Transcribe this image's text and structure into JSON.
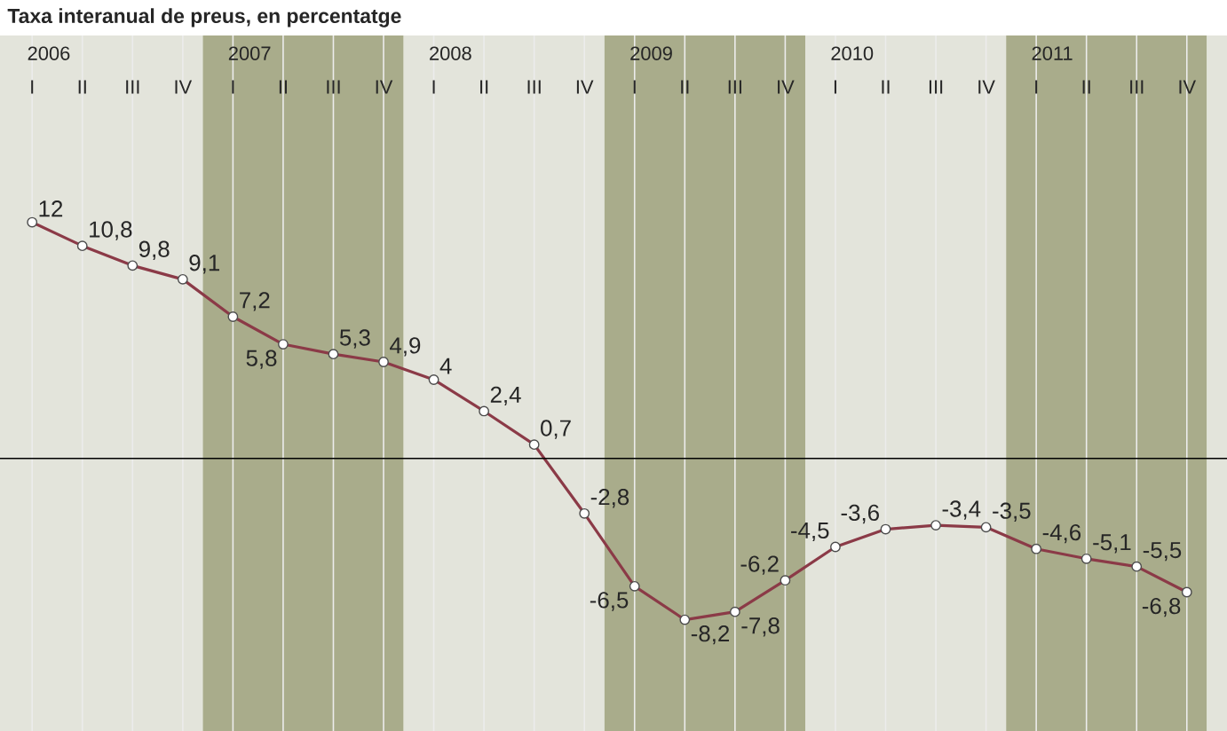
{
  "chart_data": {
    "type": "line",
    "title": "Taxa interanual de preus, en percentatge",
    "categories": [
      "I",
      "II",
      "III",
      "IV",
      "I",
      "II",
      "III",
      "IV",
      "I",
      "II",
      "III",
      "IV",
      "I",
      "II",
      "III",
      "IV",
      "I",
      "II",
      "III",
      "IV",
      "I",
      "II",
      "III",
      "IV"
    ],
    "values": [
      12,
      10.8,
      9.8,
      9.1,
      7.2,
      5.8,
      5.3,
      4.9,
      4,
      2.4,
      0.7,
      -2.8,
      -6.5,
      -8.2,
      -7.8,
      -6.2,
      -4.5,
      -3.6,
      -3.4,
      -3.5,
      -4.6,
      -5.1,
      -5.5,
      -6.8
    ],
    "value_labels": [
      "12",
      "10,8",
      "9,8",
      "9,1",
      "7,2",
      "5,8",
      "5,3",
      "4,9",
      "4",
      "2,4",
      "0,7",
      "-2,8",
      "-6,5",
      "-8,2",
      "-7,8",
      "-6,2",
      "-4,5",
      "-3,6",
      "-3,4",
      "-3,5",
      "-4,6",
      "-5,1",
      "-5,5",
      "-6,8"
    ],
    "color": "#8b3a47",
    "marker": "circle",
    "grid": "x",
    "annotations": [
      "2006",
      "2007",
      "2008",
      "2009",
      "2010",
      "2011"
    ],
    "ref_lines": [
      {
        "axis": "y",
        "value": 0,
        "color": "#000000"
      }
    ]
  }
}
